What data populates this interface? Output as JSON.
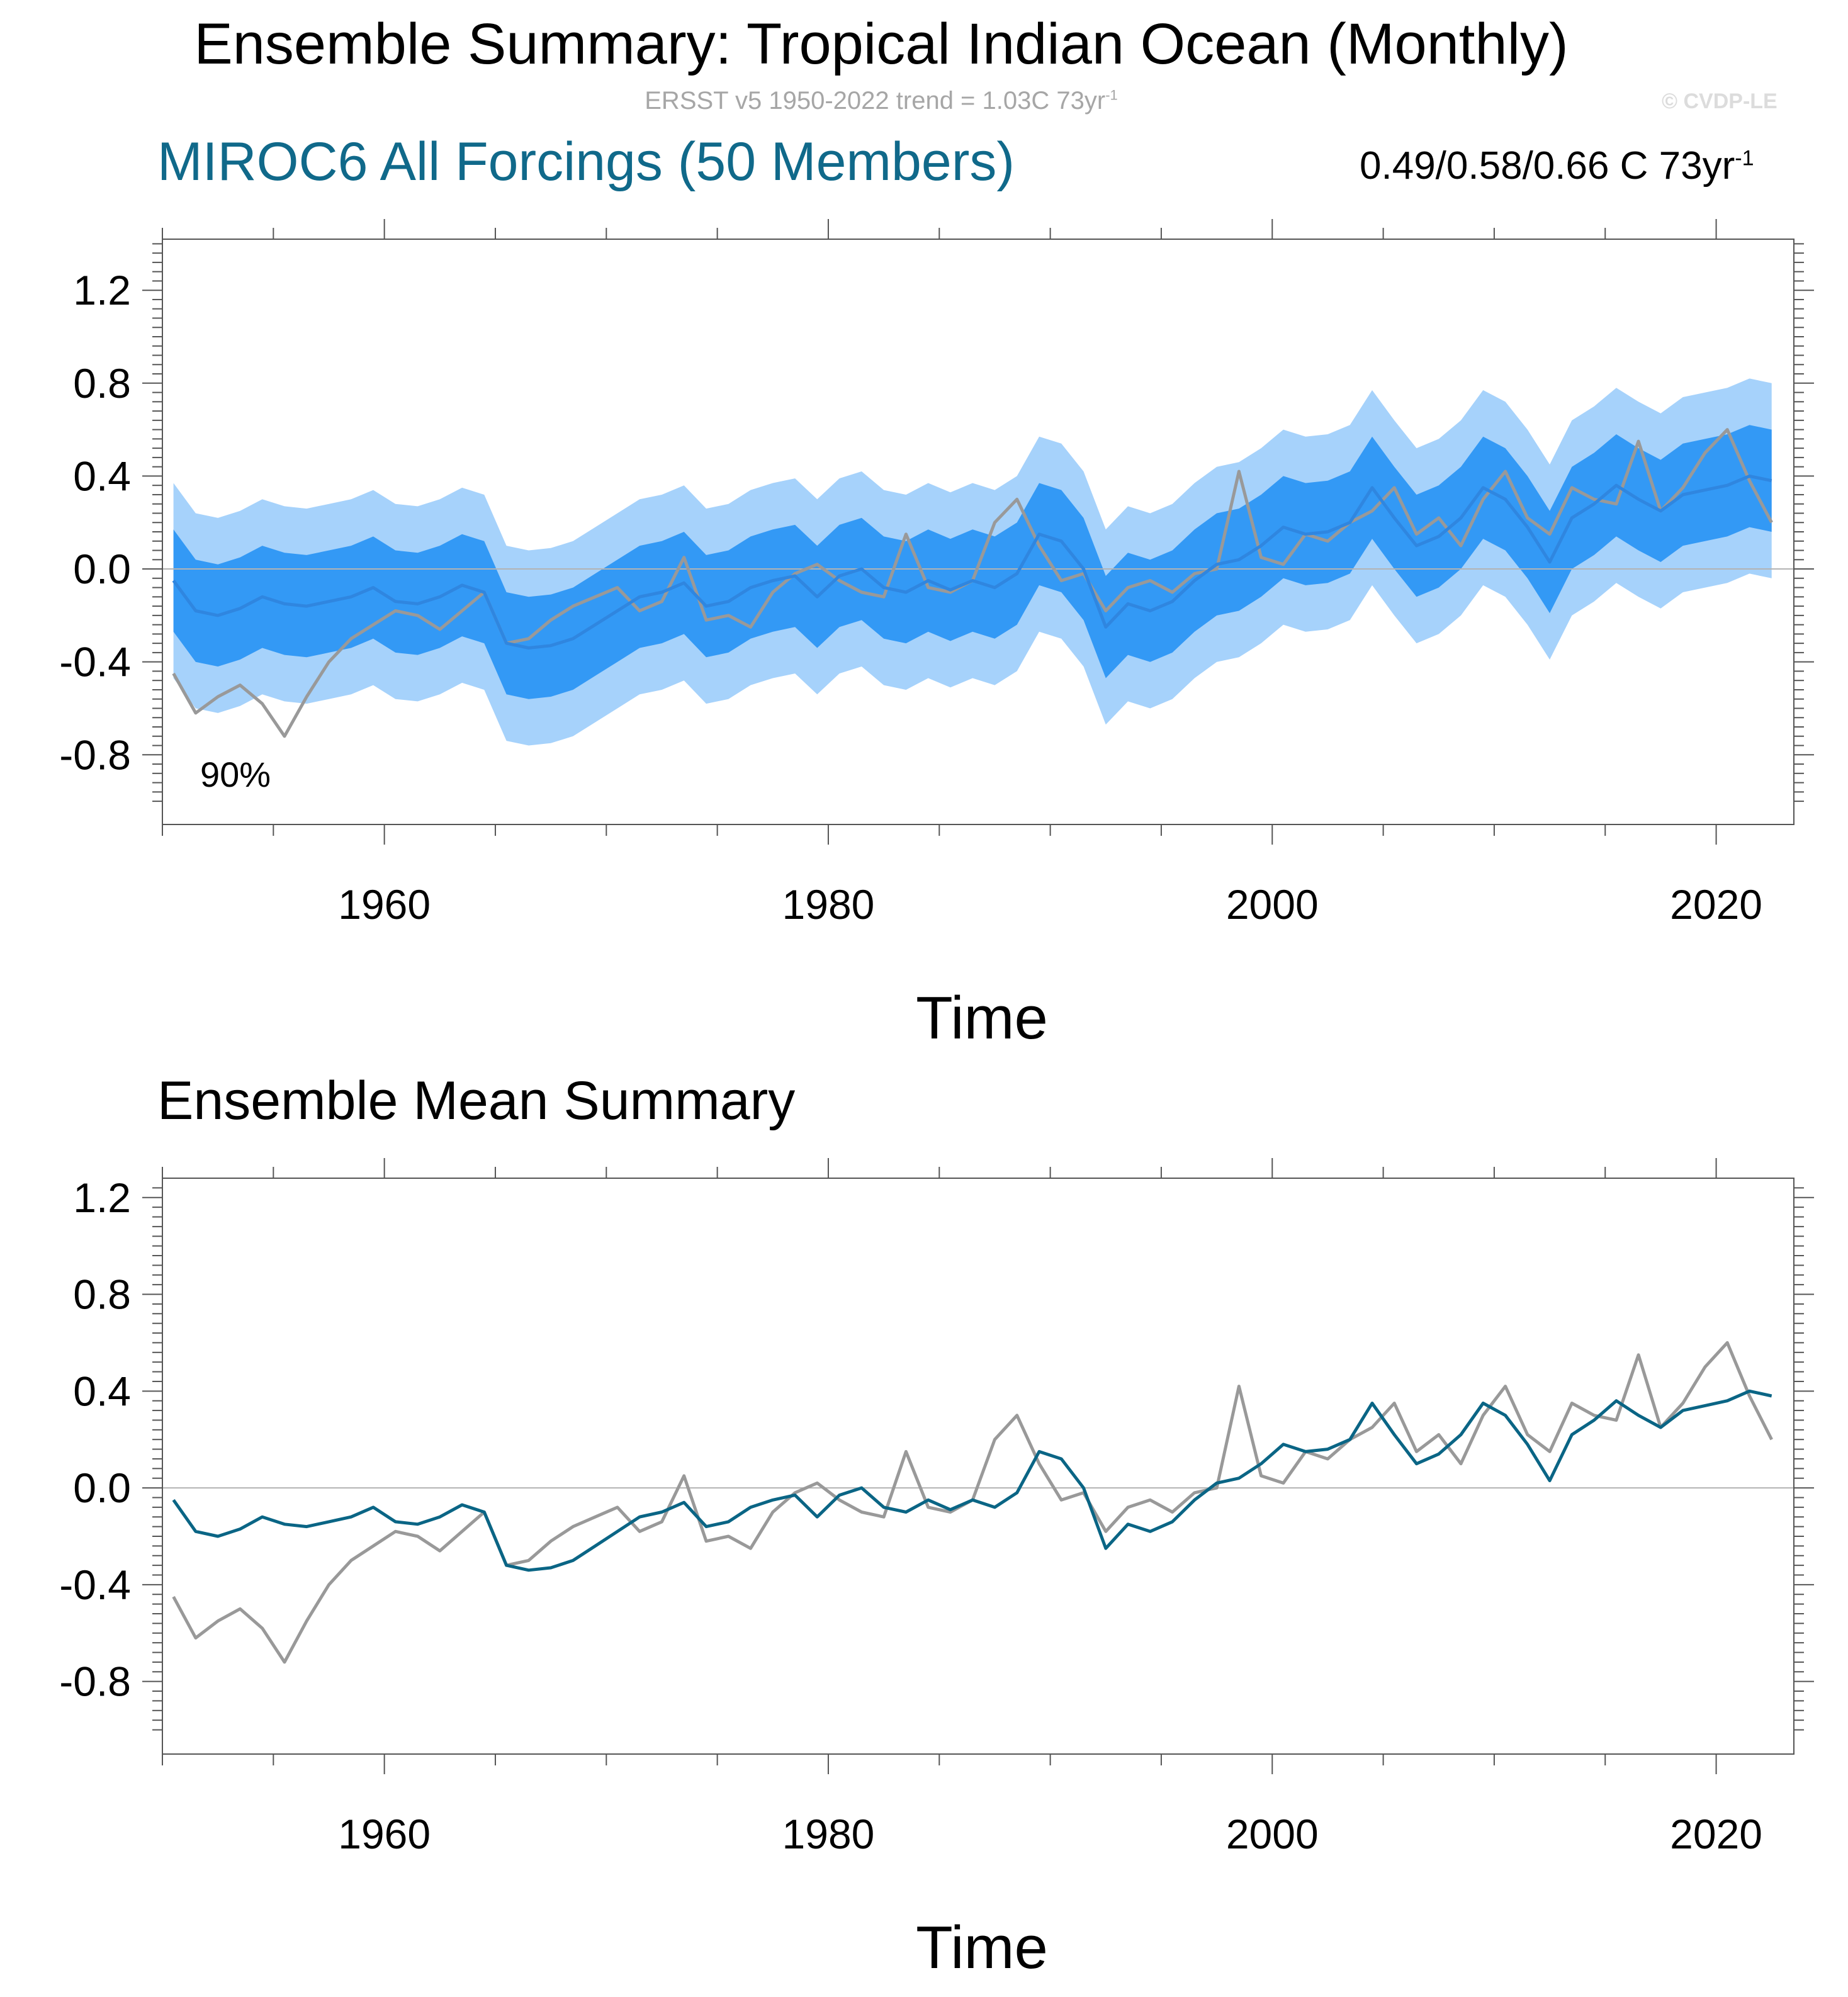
{
  "header": {
    "title": "Ensemble Summary: Tropical Indian Ocean (Monthly)",
    "subtitle_main": "ERSST v5 1950-2022 trend = 1.03C 73yr",
    "subtitle_exp": "-1",
    "watermark": "© CVDP-LE"
  },
  "upper_panel": {
    "model_label": "MIROC6 All Forcings (50 Members)",
    "trend_main": "0.49/0.58/0.66 C 73yr",
    "trend_exp": "-1",
    "percent_label": "90%"
  },
  "lower_panel": {
    "title": "Ensemble Mean Summary"
  },
  "colors": {
    "band_outer": "#a6d2fb",
    "band_inner": "#3399f5",
    "mean_line_upper": "#2f86e0",
    "mean_line_lower": "#0a6585",
    "observations": "#999999",
    "model_label": "#10698a"
  },
  "chart_data": [
    {
      "type": "area",
      "title": "MIROC6 All Forcings (50 Members)",
      "xlabel": "Time",
      "ylabel": "",
      "x_ticks": [
        1960,
        1980,
        2000,
        2020
      ],
      "y_ticks": [
        -0.8,
        -0.4,
        0.0,
        0.4,
        0.8,
        1.2
      ],
      "y_tick_labels": [
        "-0.8",
        "-0.4",
        "0.0",
        "0.4",
        "0.8",
        "1.2"
      ],
      "xlim": [
        1950,
        2023.5
      ],
      "ylim": [
        -1.1,
        1.42
      ],
      "x_start": 1950,
      "series": [
        {
          "name": "ERSST v5 observations",
          "values": [
            -0.45,
            -0.62,
            -0.55,
            -0.5,
            -0.58,
            -0.72,
            -0.55,
            -0.4,
            -0.3,
            -0.24,
            -0.18,
            -0.2,
            -0.26,
            -0.18,
            -0.1,
            -0.32,
            -0.3,
            -0.22,
            -0.16,
            -0.12,
            -0.08,
            -0.18,
            -0.14,
            0.05,
            -0.22,
            -0.2,
            -0.25,
            -0.1,
            -0.02,
            0.02,
            -0.05,
            -0.1,
            -0.12,
            0.15,
            -0.08,
            -0.1,
            -0.05,
            0.2,
            0.3,
            0.1,
            -0.05,
            -0.02,
            -0.18,
            -0.08,
            -0.05,
            -0.1,
            -0.02,
            0.0,
            0.42,
            0.05,
            0.02,
            0.15,
            0.12,
            0.2,
            0.25,
            0.35,
            0.15,
            0.22,
            0.1,
            0.3,
            0.42,
            0.22,
            0.15,
            0.35,
            0.3,
            0.28,
            0.55,
            0.25,
            0.35,
            0.5,
            0.6,
            0.38,
            0.2
          ]
        },
        {
          "name": "Ensemble mean",
          "values": [
            -0.05,
            -0.18,
            -0.2,
            -0.17,
            -0.12,
            -0.15,
            -0.16,
            -0.14,
            -0.12,
            -0.08,
            -0.14,
            -0.15,
            -0.12,
            -0.07,
            -0.1,
            -0.32,
            -0.34,
            -0.33,
            -0.3,
            -0.24,
            -0.18,
            -0.12,
            -0.1,
            -0.06,
            -0.16,
            -0.14,
            -0.08,
            -0.05,
            -0.03,
            -0.12,
            -0.03,
            0.0,
            -0.08,
            -0.1,
            -0.05,
            -0.09,
            -0.05,
            -0.08,
            -0.02,
            0.15,
            0.12,
            0.0,
            -0.25,
            -0.15,
            -0.18,
            -0.14,
            -0.05,
            0.02,
            0.04,
            0.1,
            0.18,
            0.15,
            0.16,
            0.2,
            0.35,
            0.22,
            0.1,
            0.14,
            0.22,
            0.35,
            0.3,
            0.18,
            0.03,
            0.22,
            0.28,
            0.36,
            0.3,
            0.25,
            0.32,
            0.34,
            0.36,
            0.4,
            0.38
          ]
        },
        {
          "name": "Ensemble 25th-75th percentile",
          "lower_offset": -0.22,
          "upper_offset": 0.22
        },
        {
          "name": "Ensemble 5th-95th percentile (90%)",
          "lower_offset": -0.42,
          "upper_offset": 0.42
        }
      ]
    },
    {
      "type": "line",
      "title": "Ensemble Mean Summary",
      "xlabel": "Time",
      "ylabel": "",
      "x_ticks": [
        1960,
        1980,
        2000,
        2020
      ],
      "y_ticks": [
        -0.8,
        -0.4,
        0.0,
        0.4,
        0.8,
        1.2
      ],
      "y_tick_labels": [
        "-0.8",
        "-0.4",
        "0.0",
        "0.4",
        "0.8",
        "1.2"
      ],
      "xlim": [
        1950,
        2023.5
      ],
      "ylim": [
        -1.1,
        1.28
      ],
      "x_start": 1950,
      "series": [
        {
          "name": "ERSST v5 observations",
          "values": [
            -0.45,
            -0.62,
            -0.55,
            -0.5,
            -0.58,
            -0.72,
            -0.55,
            -0.4,
            -0.3,
            -0.24,
            -0.18,
            -0.2,
            -0.26,
            -0.18,
            -0.1,
            -0.32,
            -0.3,
            -0.22,
            -0.16,
            -0.12,
            -0.08,
            -0.18,
            -0.14,
            0.05,
            -0.22,
            -0.2,
            -0.25,
            -0.1,
            -0.02,
            0.02,
            -0.05,
            -0.1,
            -0.12,
            0.15,
            -0.08,
            -0.1,
            -0.05,
            0.2,
            0.3,
            0.1,
            -0.05,
            -0.02,
            -0.18,
            -0.08,
            -0.05,
            -0.1,
            -0.02,
            0.0,
            0.42,
            0.05,
            0.02,
            0.15,
            0.12,
            0.2,
            0.25,
            0.35,
            0.15,
            0.22,
            0.1,
            0.3,
            0.42,
            0.22,
            0.15,
            0.35,
            0.3,
            0.28,
            0.55,
            0.25,
            0.35,
            0.5,
            0.6,
            0.38,
            0.2
          ]
        },
        {
          "name": "Ensemble mean",
          "values": [
            -0.05,
            -0.18,
            -0.2,
            -0.17,
            -0.12,
            -0.15,
            -0.16,
            -0.14,
            -0.12,
            -0.08,
            -0.14,
            -0.15,
            -0.12,
            -0.07,
            -0.1,
            -0.32,
            -0.34,
            -0.33,
            -0.3,
            -0.24,
            -0.18,
            -0.12,
            -0.1,
            -0.06,
            -0.16,
            -0.14,
            -0.08,
            -0.05,
            -0.03,
            -0.12,
            -0.03,
            0.0,
            -0.08,
            -0.1,
            -0.05,
            -0.09,
            -0.05,
            -0.08,
            -0.02,
            0.15,
            0.12,
            0.0,
            -0.25,
            -0.15,
            -0.18,
            -0.14,
            -0.05,
            0.02,
            0.04,
            0.1,
            0.18,
            0.15,
            0.16,
            0.2,
            0.35,
            0.22,
            0.1,
            0.14,
            0.22,
            0.35,
            0.3,
            0.18,
            0.03,
            0.22,
            0.28,
            0.36,
            0.3,
            0.25,
            0.32,
            0.34,
            0.36,
            0.4,
            0.38
          ]
        }
      ]
    }
  ]
}
